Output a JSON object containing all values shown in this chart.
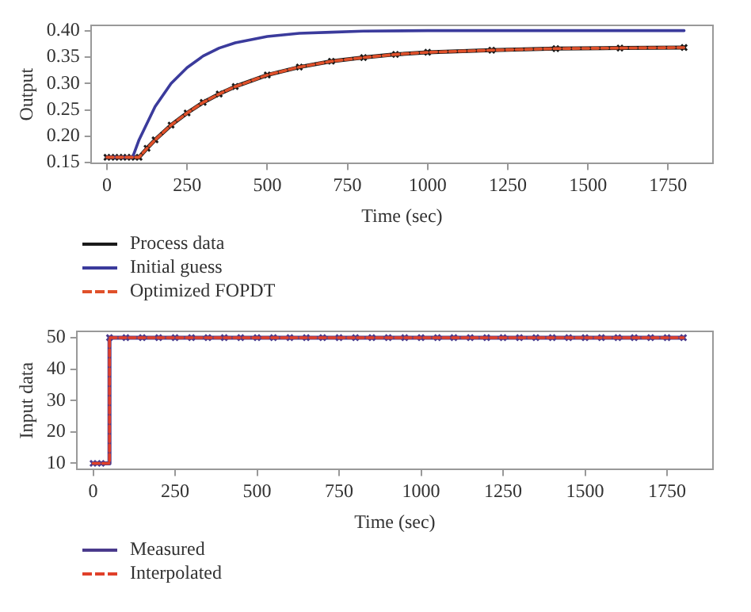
{
  "chart_data": [
    {
      "type": "line",
      "xlabel": "Time (sec)",
      "ylabel": "Output",
      "xlim": [
        -50,
        1890
      ],
      "xticks": [
        0,
        250,
        500,
        750,
        1000,
        1250,
        1500,
        1750
      ],
      "ylim": [
        0.148,
        0.41
      ],
      "yticks": [
        {
          "value": 0.15,
          "label": "0.15"
        },
        {
          "value": 0.2,
          "label": "0.20"
        },
        {
          "value": 0.25,
          "label": "0.25"
        },
        {
          "value": 0.3,
          "label": "0.30"
        },
        {
          "value": 0.35,
          "label": "0.35"
        },
        {
          "value": 0.4,
          "label": "0.40"
        }
      ],
      "grid": false,
      "legend": "bottom left",
      "series": [
        {
          "name": "Process data",
          "color": "#1a1a1a",
          "marker": "cross",
          "line_style": "solid",
          "x": [
            0,
            25,
            50,
            75,
            100,
            125,
            150,
            200,
            250,
            300,
            350,
            400,
            500,
            600,
            700,
            800,
            900,
            1000,
            1200,
            1400,
            1600,
            1800
          ],
          "values": [
            0.16,
            0.16,
            0.16,
            0.16,
            0.16,
            0.177,
            0.193,
            0.221,
            0.244,
            0.264,
            0.28,
            0.294,
            0.316,
            0.331,
            0.342,
            0.349,
            0.355,
            0.359,
            0.363,
            0.366,
            0.367,
            0.368
          ]
        },
        {
          "name": "Initial guess",
          "color": "#3b3b9c",
          "marker": "none",
          "line_style": "solid",
          "x": [
            0,
            80,
            100,
            150,
            200,
            250,
            300,
            350,
            400,
            500,
            600,
            700,
            800,
            1000,
            1800
          ],
          "values": [
            0.16,
            0.16,
            0.193,
            0.256,
            0.3,
            0.33,
            0.352,
            0.367,
            0.377,
            0.389,
            0.395,
            0.397,
            0.399,
            0.4,
            0.4
          ]
        },
        {
          "name": "Optimized FOPDT",
          "color": "#e0502a",
          "marker": "none",
          "line_style": "dashed",
          "x": [
            0,
            100,
            125,
            150,
            200,
            250,
            300,
            350,
            400,
            500,
            600,
            700,
            800,
            900,
            1000,
            1200,
            1400,
            1600,
            1800
          ],
          "values": [
            0.16,
            0.16,
            0.177,
            0.193,
            0.221,
            0.244,
            0.264,
            0.28,
            0.294,
            0.316,
            0.331,
            0.342,
            0.349,
            0.355,
            0.359,
            0.363,
            0.366,
            0.367,
            0.368
          ]
        }
      ]
    },
    {
      "type": "step",
      "xlabel": "Time (sec)",
      "ylabel": "Input data",
      "xlim": [
        -50,
        1890
      ],
      "xticks": [
        0,
        250,
        500,
        750,
        1000,
        1250,
        1500,
        1750
      ],
      "ylim": [
        8,
        52
      ],
      "yticks": [
        10,
        20,
        30,
        40,
        50
      ],
      "grid": false,
      "legend": "bottom left",
      "series": [
        {
          "name": "Measured",
          "color": "#4a3a8c",
          "marker": "cross",
          "line_style": "solid",
          "x": [
            0,
            25,
            50,
            100,
            150,
            200,
            250,
            300,
            350,
            400,
            450,
            500,
            550,
            600,
            650,
            700,
            750,
            800,
            850,
            900,
            950,
            1000,
            1050,
            1100,
            1150,
            1200,
            1250,
            1300,
            1350,
            1400,
            1450,
            1500,
            1550,
            1600,
            1650,
            1700,
            1750,
            1800
          ],
          "values": [
            10,
            10,
            50,
            50,
            50,
            50,
            50,
            50,
            50,
            50,
            50,
            50,
            50,
            50,
            50,
            50,
            50,
            50,
            50,
            50,
            50,
            50,
            50,
            50,
            50,
            50,
            50,
            50,
            50,
            50,
            50,
            50,
            50,
            50,
            50,
            50,
            50,
            50
          ]
        },
        {
          "name": "Interpolated",
          "color": "#e0402a",
          "marker": "none",
          "line_style": "dashed",
          "x": [
            0,
            50,
            1800
          ],
          "values": [
            10,
            50,
            50
          ]
        }
      ]
    }
  ]
}
